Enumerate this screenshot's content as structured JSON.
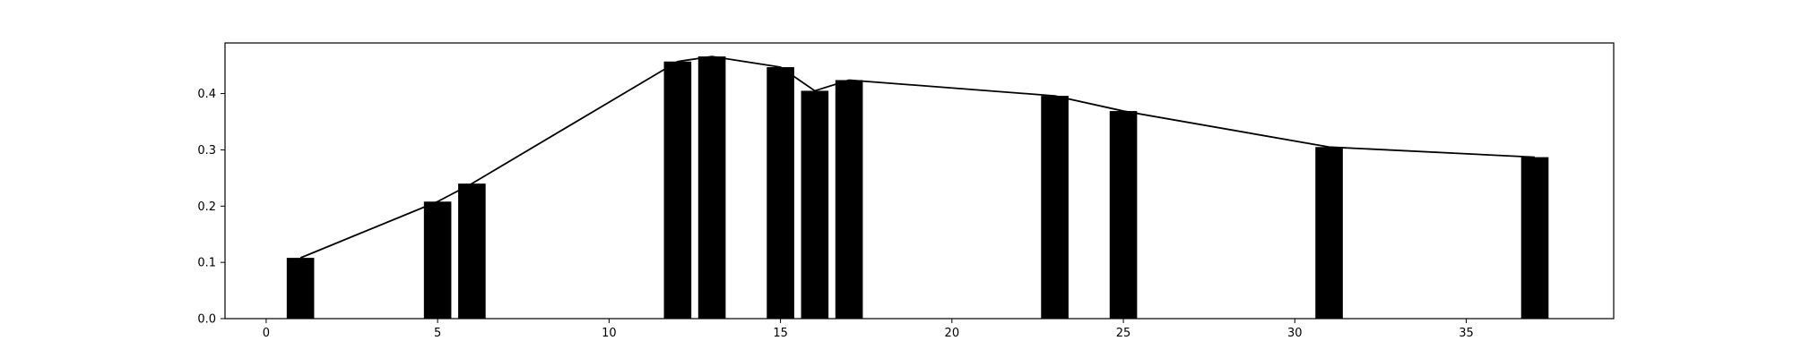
{
  "chart_data": {
    "type": "bar",
    "title": "",
    "xlabel": "",
    "ylabel": "",
    "xlim": [
      -1.2,
      39.3
    ],
    "ylim": [
      0,
      0.49
    ],
    "grid": false,
    "legend": "none",
    "x": [
      1,
      5,
      6,
      12,
      13,
      15,
      16,
      17,
      23,
      25,
      31,
      37
    ],
    "values": [
      0.108,
      0.208,
      0.24,
      0.457,
      0.466,
      0.447,
      0.405,
      0.424,
      0.396,
      0.369,
      0.305,
      0.287
    ],
    "bar_width": 0.8,
    "overlay_line": {
      "type": "line",
      "x": [
        1,
        5,
        6,
        12,
        13,
        15,
        16,
        17,
        23,
        25,
        31,
        37
      ],
      "y": [
        0.108,
        0.208,
        0.24,
        0.457,
        0.466,
        0.447,
        0.405,
        0.424,
        0.396,
        0.369,
        0.305,
        0.287
      ]
    },
    "x_ticks": [
      0,
      5,
      10,
      15,
      20,
      25,
      30,
      35
    ],
    "x_tick_labels": [
      "0",
      "5",
      "10",
      "15",
      "20",
      "25",
      "30",
      "35"
    ],
    "y_ticks": [
      0.0,
      0.1,
      0.2,
      0.3,
      0.4
    ],
    "y_tick_labels": [
      "0.0",
      "0.1",
      "0.2",
      "0.3",
      "0.4"
    ],
    "colors": {
      "bars": "#000000",
      "line": "#000000",
      "axes": "#000000",
      "background": "#ffffff"
    }
  }
}
